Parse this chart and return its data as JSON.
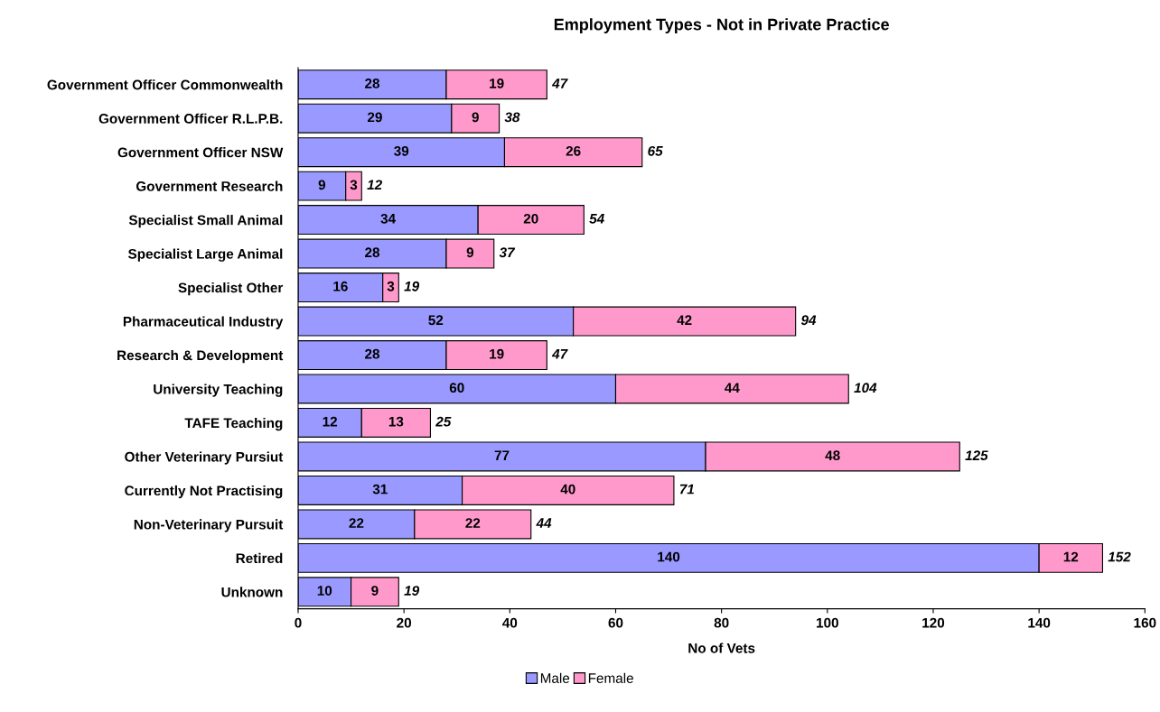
{
  "chart_data": {
    "type": "bar",
    "orientation": "horizontal",
    "stacked": true,
    "title": "Employment Types - Not in Private Practice",
    "xlabel": "No of Vets",
    "categories": [
      "Government Officer Commonwealth",
      "Government Officer R.L.P.B.",
      "Government Officer NSW",
      "Government Research",
      "Specialist Small Animal",
      "Specialist Large Animal",
      "Specialist Other",
      "Pharmaceutical Industry",
      "Research & Development",
      "University Teaching",
      "TAFE Teaching",
      "Other Veterinary Pursiut",
      "Currently Not Practising",
      "Non-Veterinary Pursuit",
      "Retired",
      "Unknown"
    ],
    "series": [
      {
        "name": "Male",
        "color": "#9999ff",
        "values": [
          28,
          29,
          39,
          9,
          34,
          28,
          16,
          52,
          28,
          60,
          12,
          77,
          31,
          22,
          140,
          10
        ]
      },
      {
        "name": "Female",
        "color": "#ff99cc",
        "values": [
          19,
          9,
          26,
          3,
          20,
          9,
          3,
          42,
          19,
          44,
          13,
          48,
          40,
          22,
          12,
          9
        ]
      }
    ],
    "totals": [
      "47",
      "38",
      "65",
      "12",
      "54",
      "37",
      "19",
      "94",
      "47",
      "104",
      "25",
      "125",
      "71",
      "44",
      "152",
      "19"
    ],
    "data_labels": true,
    "xlim": [
      0,
      160
    ],
    "xticks": [
      0,
      20,
      40,
      60,
      80,
      100,
      120,
      140,
      160
    ],
    "grid": false,
    "legend": "bottom"
  }
}
